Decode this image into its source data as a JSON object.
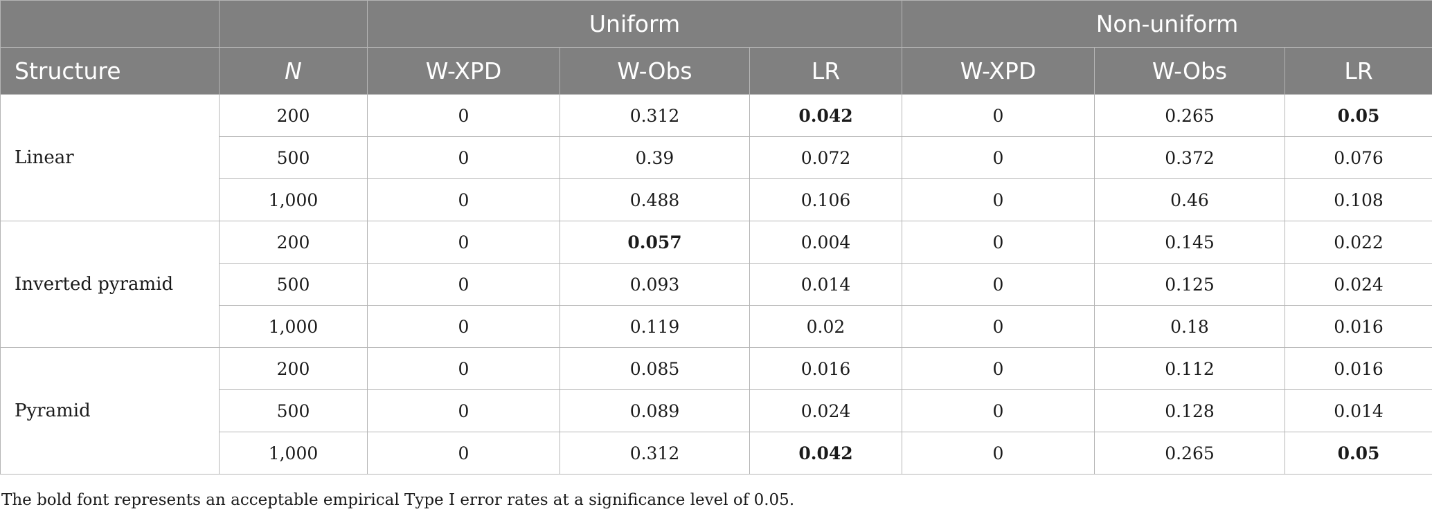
{
  "header": {
    "group_uniform": "Uniform",
    "group_nonuniform": "Non-uniform",
    "col_structure": "Structure",
    "col_n": "N",
    "col_wxpd": "W-XPD",
    "col_wobs": "W-Obs",
    "col_lr": "LR"
  },
  "groups": [
    {
      "structure": "Linear",
      "rows": [
        {
          "n": "200",
          "cells": [
            "0",
            "0.312",
            "0.042",
            "0",
            "0.265",
            "0.05"
          ],
          "bold": [
            false,
            false,
            true,
            false,
            false,
            true
          ]
        },
        {
          "n": "500",
          "cells": [
            "0",
            "0.39",
            "0.072",
            "0",
            "0.372",
            "0.076"
          ],
          "bold": [
            false,
            false,
            false,
            false,
            false,
            false
          ]
        },
        {
          "n": "1,000",
          "cells": [
            "0",
            "0.488",
            "0.106",
            "0",
            "0.46",
            "0.108"
          ],
          "bold": [
            false,
            false,
            false,
            false,
            false,
            false
          ]
        }
      ]
    },
    {
      "structure": "Inverted pyramid",
      "rows": [
        {
          "n": "200",
          "cells": [
            "0",
            "0.057",
            "0.004",
            "0",
            "0.145",
            "0.022"
          ],
          "bold": [
            false,
            true,
            false,
            false,
            false,
            false
          ]
        },
        {
          "n": "500",
          "cells": [
            "0",
            "0.093",
            "0.014",
            "0",
            "0.125",
            "0.024"
          ],
          "bold": [
            false,
            false,
            false,
            false,
            false,
            false
          ]
        },
        {
          "n": "1,000",
          "cells": [
            "0",
            "0.119",
            "0.02",
            "0",
            "0.18",
            "0.016"
          ],
          "bold": [
            false,
            false,
            false,
            false,
            false,
            false
          ]
        }
      ]
    },
    {
      "structure": "Pyramid",
      "rows": [
        {
          "n": "200",
          "cells": [
            "0",
            "0.085",
            "0.016",
            "0",
            "0.112",
            "0.016"
          ],
          "bold": [
            false,
            false,
            false,
            false,
            false,
            false
          ]
        },
        {
          "n": "500",
          "cells": [
            "0",
            "0.089",
            "0.024",
            "0",
            "0.128",
            "0.014"
          ],
          "bold": [
            false,
            false,
            false,
            false,
            false,
            false
          ]
        },
        {
          "n": "1,000",
          "cells": [
            "0",
            "0.312",
            "0.042",
            "0",
            "0.265",
            "0.05"
          ],
          "bold": [
            false,
            false,
            true,
            false,
            false,
            true
          ]
        }
      ]
    }
  ],
  "footnote": "The bold font represents an acceptable empirical Type I error rates at a significance level of 0.05.",
  "colors": {
    "header_bg": "#808080",
    "header_text": "#ffffff",
    "grid": "#b5b5b5"
  }
}
